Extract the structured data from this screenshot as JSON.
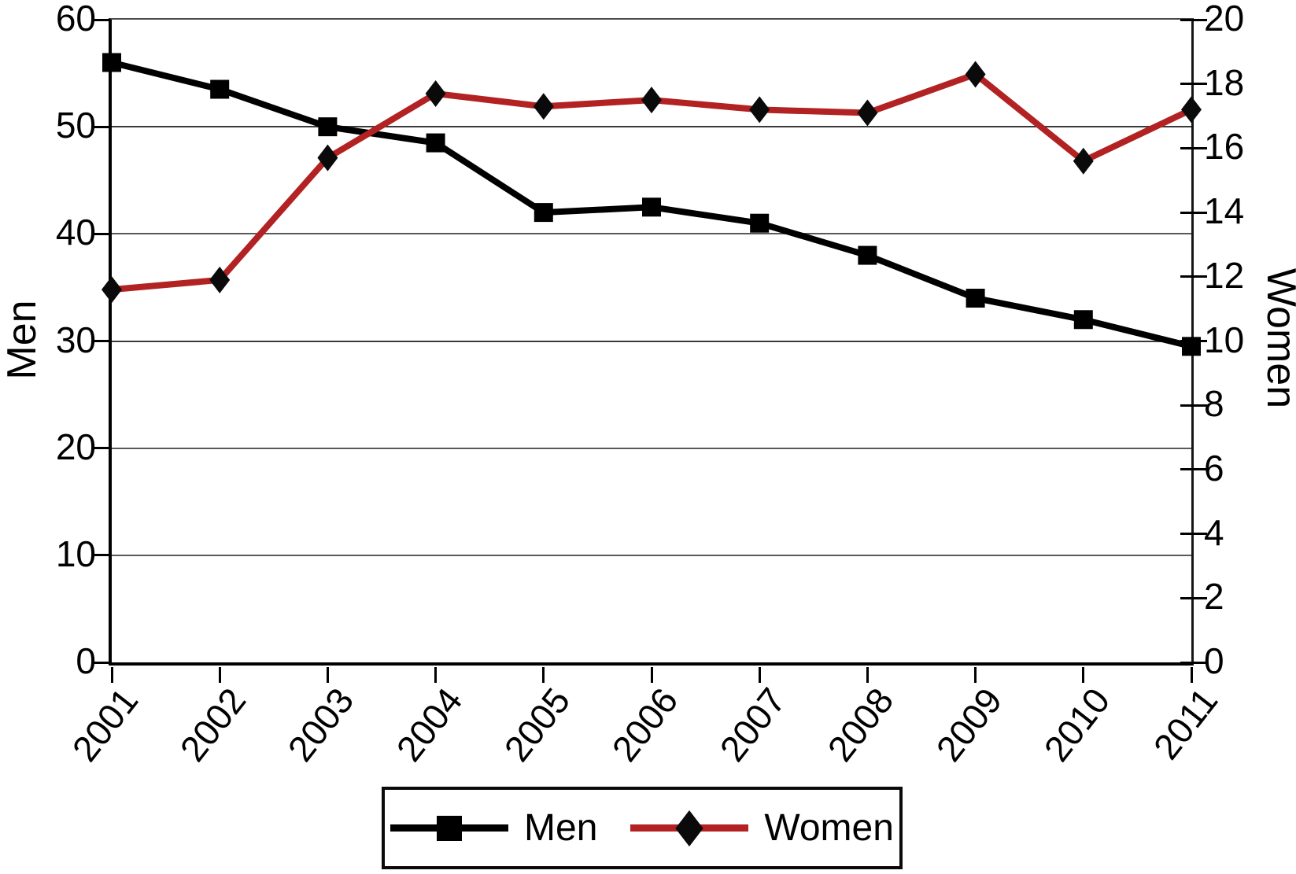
{
  "figure": {
    "background": "#ffffff"
  },
  "chart_data": {
    "type": "line",
    "title": "",
    "categories": [
      "2001",
      "2002",
      "2003",
      "2004",
      "2005",
      "2006",
      "2007",
      "2008",
      "2009",
      "2010",
      "2011"
    ],
    "series": [
      {
        "name": "Men",
        "axis": "left",
        "color": "#000000",
        "marker": "square",
        "values": [
          56,
          53.5,
          50,
          48.5,
          42,
          42.5,
          41,
          38,
          34,
          32,
          29.5
        ]
      },
      {
        "name": "Women",
        "axis": "right",
        "color": "#b22222",
        "marker": "diamond",
        "marker_color": "#0a0a0a",
        "values": [
          11.6,
          11.9,
          15.7,
          17.7,
          17.3,
          17.5,
          17.2,
          17.1,
          18.3,
          15.6,
          17.2
        ]
      }
    ],
    "left_axis": {
      "label": "Men",
      "min": 0,
      "max": 60,
      "ticks": [
        60,
        50,
        40,
        30,
        20,
        10,
        0
      ]
    },
    "right_axis": {
      "label": "Women",
      "min": 0,
      "max": 20,
      "ticks": [
        20,
        18,
        16,
        14,
        12,
        10,
        8,
        6,
        4,
        2,
        0
      ]
    },
    "x_axis": {
      "tick_labels": [
        "2001",
        "2002",
        "2003",
        "2004",
        "2005",
        "2006",
        "2007",
        "2008",
        "2009",
        "2010",
        "2011"
      ],
      "label_rotation_deg": -52
    },
    "gridlines_at_left_values": [
      50,
      40,
      30,
      20,
      10
    ],
    "grid": "horizontal",
    "legend": {
      "position": "bottom",
      "entries": [
        "Men",
        "Women"
      ]
    }
  }
}
